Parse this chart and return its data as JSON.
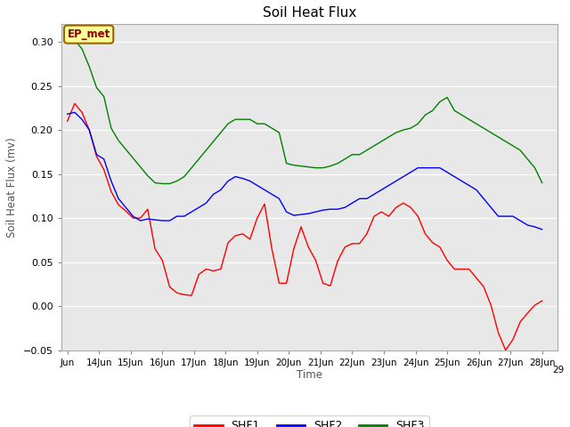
{
  "title": "Soil Heat Flux",
  "xlabel": "Time",
  "ylabel": "Soil Heat Flux (mv)",
  "fig_facecolor": "#ffffff",
  "plot_bg_color": "#e8e8e8",
  "annotation_text": "EP_met",
  "annotation_bg": "#ffff99",
  "annotation_border": "#996600",
  "ylim": [
    -0.05,
    0.32
  ],
  "yticks": [
    -0.05,
    0.0,
    0.05,
    0.1,
    0.15,
    0.2,
    0.25,
    0.3
  ],
  "x_tick_positions": [
    0,
    1,
    2,
    3,
    4,
    5,
    6,
    7,
    8,
    9,
    10,
    11,
    12,
    13,
    14,
    15
  ],
  "x_tick_labels": [
    "Jun",
    "14Jun",
    "15Jun",
    "16Jun",
    "17Jun",
    "18Jun",
    "19Jun",
    "20Jun",
    "21Jun",
    "22Jun",
    "23Jun",
    "24Jun",
    "25Jun",
    "26Jun",
    "27Jun",
    "28Jun"
  ],
  "x_extra_label": "29",
  "shf1": [
    0.21,
    0.23,
    0.22,
    0.2,
    0.17,
    0.155,
    0.13,
    0.115,
    0.108,
    0.1,
    0.1,
    0.11,
    0.065,
    0.052,
    0.022,
    0.015,
    0.013,
    0.012,
    0.036,
    0.042,
    0.04,
    0.042,
    0.072,
    0.08,
    0.082,
    0.076,
    0.1,
    0.116,
    0.065,
    0.026,
    0.026,
    0.065,
    0.09,
    0.067,
    0.052,
    0.026,
    0.023,
    0.051,
    0.067,
    0.071,
    0.071,
    0.082,
    0.102,
    0.107,
    0.102,
    0.112,
    0.117,
    0.112,
    0.102,
    0.082,
    0.072,
    0.067,
    0.052,
    0.042,
    0.042,
    0.042,
    0.032,
    0.022,
    0.001,
    -0.03,
    -0.05,
    -0.038,
    -0.018,
    -0.008,
    0.001,
    0.006
  ],
  "shf2": [
    0.218,
    0.22,
    0.212,
    0.2,
    0.172,
    0.167,
    0.142,
    0.122,
    0.112,
    0.102,
    0.097,
    0.099,
    0.098,
    0.097,
    0.097,
    0.102,
    0.102,
    0.107,
    0.112,
    0.117,
    0.127,
    0.132,
    0.142,
    0.147,
    0.145,
    0.142,
    0.137,
    0.132,
    0.127,
    0.122,
    0.107,
    0.103,
    0.104,
    0.105,
    0.107,
    0.109,
    0.11,
    0.11,
    0.112,
    0.117,
    0.122,
    0.122,
    0.127,
    0.132,
    0.137,
    0.142,
    0.147,
    0.152,
    0.157,
    0.157,
    0.157,
    0.157,
    0.152,
    0.147,
    0.142,
    0.137,
    0.132,
    0.122,
    0.112,
    0.102,
    0.102,
    0.102,
    0.097,
    0.092,
    0.09,
    0.087
  ],
  "shf3": [
    0.308,
    0.302,
    0.292,
    0.272,
    0.248,
    0.238,
    0.202,
    0.188,
    0.178,
    0.168,
    0.158,
    0.148,
    0.14,
    0.139,
    0.139,
    0.142,
    0.147,
    0.157,
    0.167,
    0.177,
    0.187,
    0.197,
    0.207,
    0.212,
    0.212,
    0.212,
    0.207,
    0.207,
    0.202,
    0.197,
    0.162,
    0.16,
    0.159,
    0.158,
    0.157,
    0.157,
    0.159,
    0.162,
    0.167,
    0.172,
    0.172,
    0.177,
    0.182,
    0.187,
    0.192,
    0.197,
    0.2,
    0.202,
    0.207,
    0.217,
    0.222,
    0.232,
    0.237,
    0.222,
    0.217,
    0.212,
    0.207,
    0.202,
    0.197,
    0.192,
    0.187,
    0.182,
    0.177,
    0.167,
    0.157,
    0.14
  ]
}
